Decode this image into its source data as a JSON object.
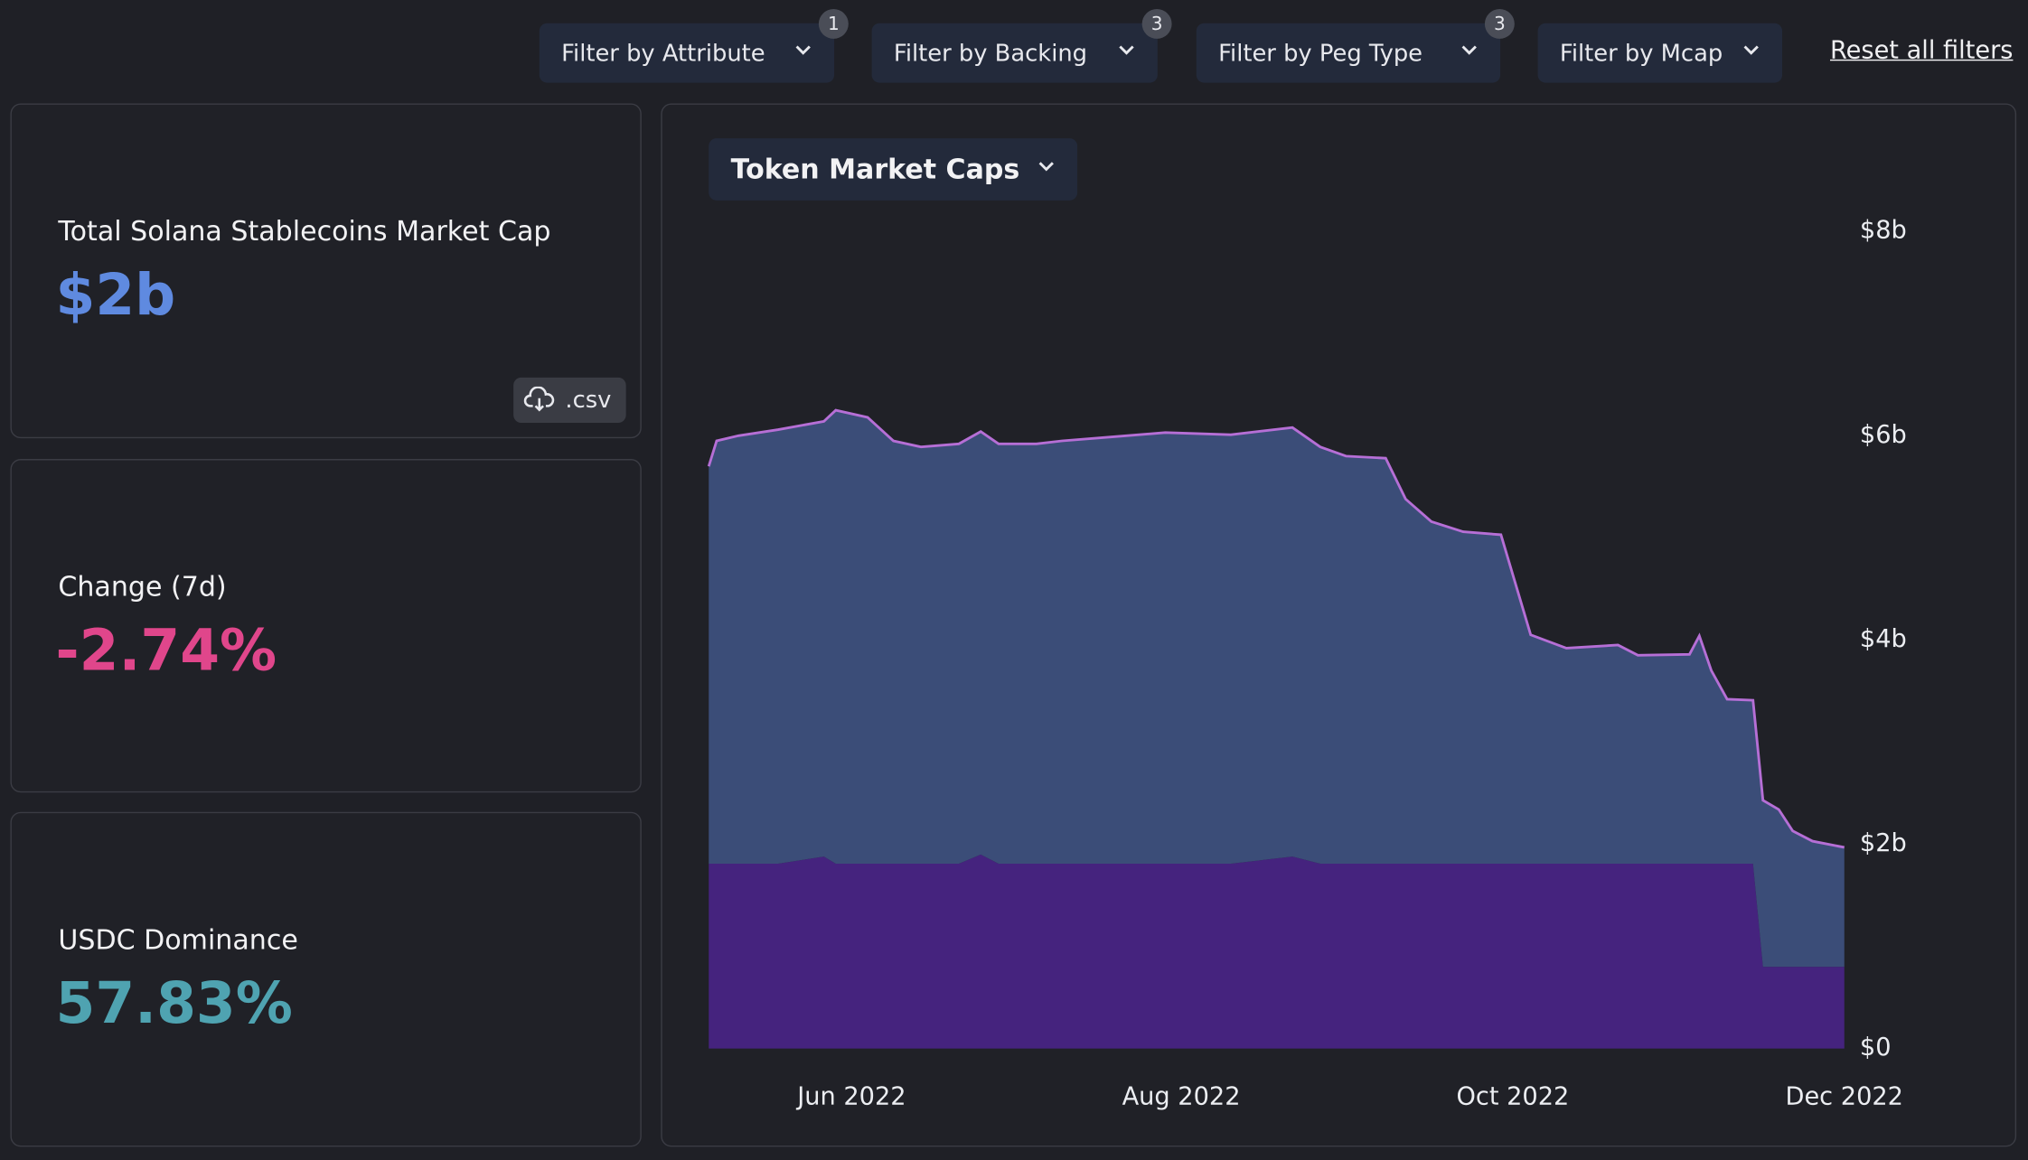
{
  "filters": [
    {
      "label": "Filter by Attribute",
      "count": 1
    },
    {
      "label": "Filter by Backing",
      "count": 3
    },
    {
      "label": "Filter by Peg Type",
      "count": 3
    },
    {
      "label": "Filter by Mcap"
    }
  ],
  "reset_label": "Reset all filters",
  "stats": [
    {
      "label": "Total Solana Stablecoins Market Cap",
      "value": "$2b"
    },
    {
      "label": "Change (7d)",
      "value": "-2.74%"
    },
    {
      "label": "USDC Dominance",
      "value": "57.83%"
    }
  ],
  "csv_button": ".csv",
  "chart_data": {
    "type": "area",
    "stacked": true,
    "title": "Token Market Caps",
    "x": [
      2022.345,
      2022.349,
      2022.36,
      2022.38,
      2022.403,
      2022.409,
      2022.425,
      2022.438,
      2022.452,
      2022.471,
      2022.482,
      2022.491,
      2022.51,
      2022.523,
      2022.549,
      2022.575,
      2022.608,
      2022.639,
      2022.653,
      2022.666,
      2022.686,
      2022.696,
      2022.709,
      2022.725,
      2022.744,
      2022.759,
      2022.777,
      2022.803,
      2022.813,
      2022.839,
      2022.844,
      2022.85,
      2022.858,
      2022.871,
      2022.876,
      2022.884,
      2022.891,
      2022.901,
      2022.917
    ],
    "series": [
      {
        "color": "#45237e",
        "values": [
          1.81,
          1.81,
          1.81,
          1.81,
          1.88,
          1.81,
          1.81,
          1.81,
          1.81,
          1.81,
          1.9,
          1.81,
          1.81,
          1.81,
          1.81,
          1.81,
          1.81,
          1.88,
          1.81,
          1.81,
          1.81,
          1.81,
          1.81,
          1.81,
          1.81,
          1.81,
          1.81,
          1.81,
          1.81,
          1.81,
          1.81,
          1.81,
          1.81,
          1.81,
          0.8,
          0.8,
          0.8,
          0.8,
          0.8
        ]
      },
      {
        "color": "#3b4d78",
        "line_color": "#b66fd6",
        "values": [
          3.89,
          4.14,
          4.19,
          4.25,
          4.26,
          4.44,
          4.37,
          4.14,
          4.08,
          4.11,
          4.14,
          4.11,
          4.11,
          4.14,
          4.18,
          4.22,
          4.2,
          4.2,
          4.08,
          3.99,
          3.97,
          3.57,
          3.35,
          3.25,
          3.22,
          2.24,
          2.11,
          2.14,
          2.04,
          2.05,
          2.23,
          1.89,
          1.61,
          1.6,
          1.63,
          1.54,
          1.33,
          1.23,
          1.17
        ]
      }
    ],
    "xlim": [
      2022.345,
      2022.917
    ],
    "xticks": [
      {
        "value": 2022.417,
        "label": "Jun 2022"
      },
      {
        "value": 2022.583,
        "label": "Aug 2022"
      },
      {
        "value": 2022.75,
        "label": "Oct 2022"
      },
      {
        "value": 2022.917,
        "label": "Dec 2022"
      }
    ],
    "ylim": [
      0,
      8
    ],
    "yticks": [
      {
        "value": 0,
        "label": "$0"
      },
      {
        "value": 2,
        "label": "$2b"
      },
      {
        "value": 4,
        "label": "$4b"
      },
      {
        "value": 6,
        "label": "$6b"
      },
      {
        "value": 8,
        "label": "$8b"
      }
    ]
  }
}
